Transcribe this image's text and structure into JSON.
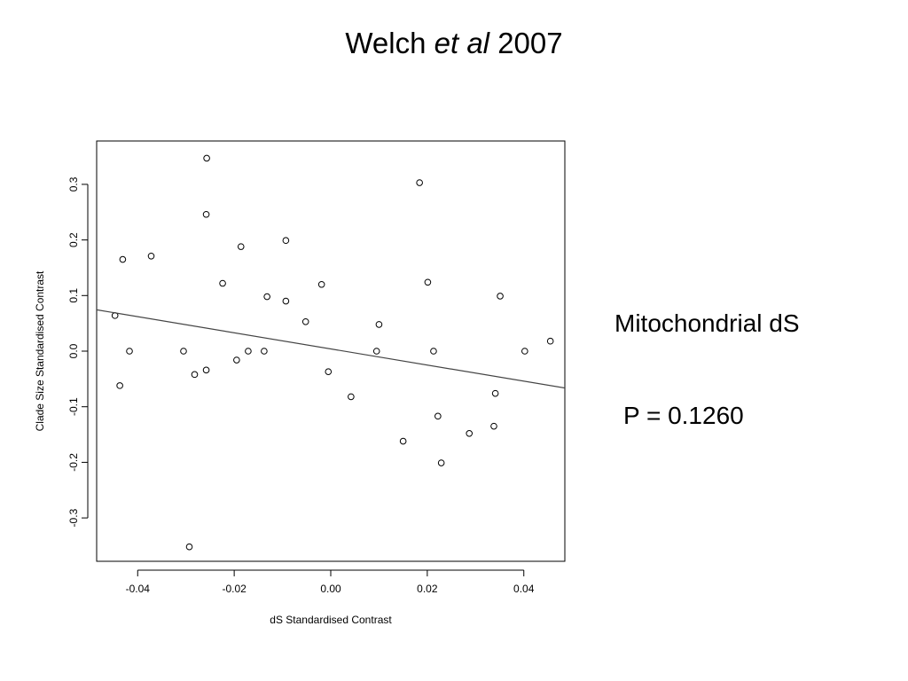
{
  "slide": {
    "title_author": "Welch",
    "title_etal": "et al",
    "title_year": "2007",
    "side_label": "Mitochondrial dS",
    "p_value": "P = 0.1260"
  },
  "chart_data": {
    "type": "scatter",
    "title": "",
    "xlabel": "dS Standardised Contrast",
    "ylabel": "Clade Size Standardised Contrast",
    "xlim": [
      -0.0485,
      0.0485
    ],
    "ylim": [
      -0.378,
      0.378
    ],
    "xticks": [
      -0.04,
      -0.02,
      0.0,
      0.02,
      0.04
    ],
    "xtick_labels": [
      "-0.04",
      "-0.02",
      "0.00",
      "0.02",
      "0.04"
    ],
    "yticks": [
      -0.3,
      -0.2,
      -0.1,
      0.0,
      0.1,
      0.2,
      0.3
    ],
    "ytick_labels": [
      "-0.3",
      "-0.2",
      "-0.1",
      "0.0",
      "0.1",
      "0.2",
      "0.3"
    ],
    "grid": false,
    "regression_line": {
      "intercept": 0.004,
      "slope": -1.45
    },
    "points": [
      [
        -0.0447,
        0.064
      ],
      [
        -0.0431,
        0.165
      ],
      [
        -0.0437,
        -0.062
      ],
      [
        -0.0417,
        0.0
      ],
      [
        -0.0372,
        0.171
      ],
      [
        -0.0305,
        0.0
      ],
      [
        -0.0293,
        -0.352
      ],
      [
        -0.0282,
        -0.042
      ],
      [
        -0.0257,
        0.347
      ],
      [
        -0.0258,
        0.246
      ],
      [
        -0.0258,
        -0.034
      ],
      [
        -0.0224,
        0.122
      ],
      [
        -0.0195,
        -0.016
      ],
      [
        -0.0186,
        0.188
      ],
      [
        -0.0171,
        0.0
      ],
      [
        -0.0138,
        0.0
      ],
      [
        -0.0132,
        0.098
      ],
      [
        -0.0093,
        0.199
      ],
      [
        -0.0093,
        0.09
      ],
      [
        -0.0052,
        0.053
      ],
      [
        -0.0019,
        0.12
      ],
      [
        -0.0005,
        -0.037
      ],
      [
        0.0042,
        -0.082
      ],
      [
        0.0095,
        0.0
      ],
      [
        0.01,
        0.048
      ],
      [
        0.015,
        -0.162
      ],
      [
        0.0184,
        0.303
      ],
      [
        0.0201,
        0.124
      ],
      [
        0.0213,
        0.0
      ],
      [
        0.0222,
        -0.117
      ],
      [
        0.0229,
        -0.201
      ],
      [
        0.0287,
        -0.148
      ],
      [
        0.0338,
        -0.135
      ],
      [
        0.0341,
        -0.076
      ],
      [
        0.0351,
        0.099
      ],
      [
        0.0402,
        0.0
      ],
      [
        0.0455,
        0.018
      ]
    ]
  }
}
